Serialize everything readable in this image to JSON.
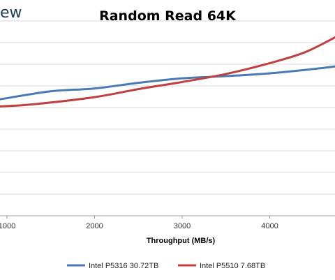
{
  "logo_text": "ew",
  "chart_data": {
    "type": "line",
    "title": "Random Read 64K",
    "xlabel": "Throughput (MB/s)",
    "ylabel": "",
    "x_ticks": [
      1000,
      2000,
      3000,
      4000
    ],
    "xlim": [
      920,
      4750
    ],
    "ylim": [
      0,
      9
    ],
    "grid": true,
    "legend_position": "bottom",
    "series": [
      {
        "name": "Intel P5316 30.72TB",
        "color": "#4a7ab5",
        "points": [
          [
            920,
            5.38
          ],
          [
            1500,
            5.75
          ],
          [
            2000,
            5.88
          ],
          [
            2500,
            6.14
          ],
          [
            3000,
            6.35
          ],
          [
            3500,
            6.45
          ],
          [
            4000,
            6.58
          ],
          [
            4500,
            6.78
          ],
          [
            4750,
            6.9
          ]
        ]
      },
      {
        "name": "Intel P5510 7.68TB",
        "color": "#c0403f",
        "points": [
          [
            920,
            5.05
          ],
          [
            1300,
            5.15
          ],
          [
            2000,
            5.48
          ],
          [
            2500,
            5.85
          ],
          [
            3000,
            6.18
          ],
          [
            3500,
            6.55
          ],
          [
            4000,
            7.05
          ],
          [
            4400,
            7.55
          ],
          [
            4750,
            8.25
          ]
        ]
      }
    ]
  }
}
